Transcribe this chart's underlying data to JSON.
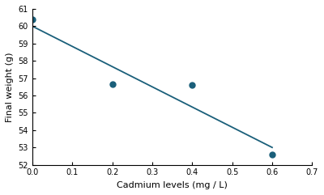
{
  "scatter_x": [
    0.0,
    0.2,
    0.4,
    0.6
  ],
  "scatter_y": [
    60.4,
    56.65,
    56.6,
    52.6
  ],
  "line_x": [
    0.0,
    0.6
  ],
  "line_y": [
    60.0,
    53.0
  ],
  "xlabel": "Cadmium levels (mg / L)",
  "ylabel": "Final weight (g)",
  "xlim": [
    0.0,
    0.7
  ],
  "ylim": [
    52.0,
    61.0
  ],
  "xticks": [
    0.0,
    0.1,
    0.2,
    0.3,
    0.4,
    0.5,
    0.6,
    0.7
  ],
  "yticks": [
    52,
    53,
    54,
    55,
    56,
    57,
    58,
    59,
    60,
    61
  ],
  "scatter_color": "#1a5f7a",
  "line_color": "#1a5f7a",
  "marker_size": 5,
  "line_width": 1.3,
  "bg_color": "#ffffff",
  "xlabel_fontsize": 8,
  "ylabel_fontsize": 8,
  "tick_fontsize": 7
}
